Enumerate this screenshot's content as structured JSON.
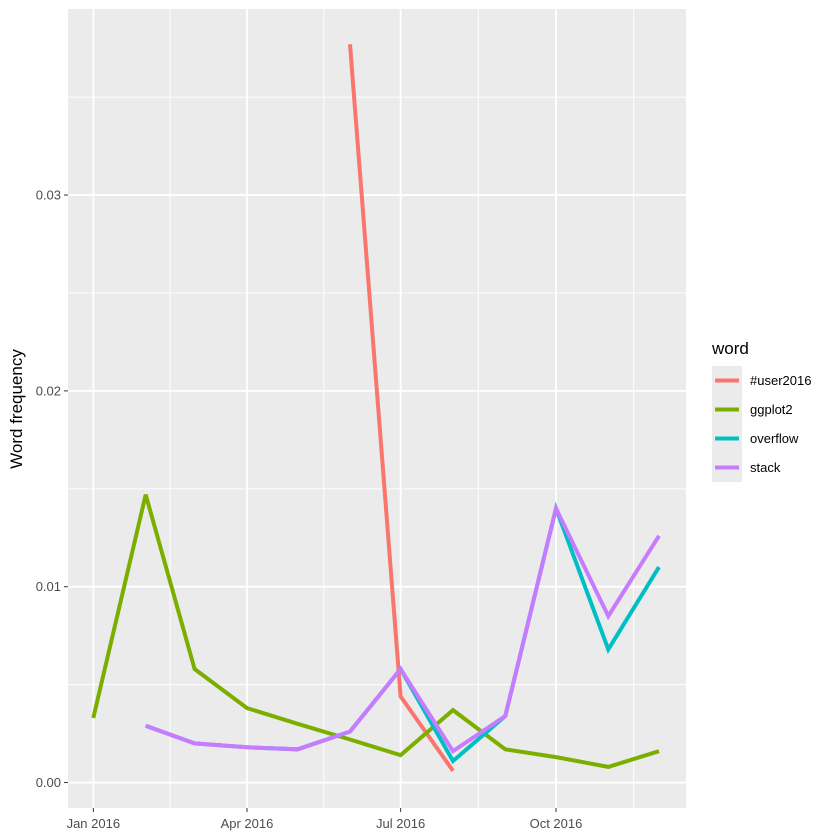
{
  "chart_data": {
    "type": "line",
    "xlabel": "",
    "ylabel": "Word frequency",
    "x_ticks": [
      "Jan 2016",
      "Apr 2016",
      "Jul 2016",
      "Oct 2016"
    ],
    "x_tick_dates": [
      "2016-01-01",
      "2016-04-01",
      "2016-07-01",
      "2016-10-01"
    ],
    "y_ticks": [
      "0.00",
      "0.01",
      "0.02",
      "0.03"
    ],
    "y_tick_values": [
      0.0,
      0.01,
      0.02,
      0.03
    ],
    "xlim": [
      "2015-12-17",
      "2016-12-17"
    ],
    "ylim": [
      -0.0013,
      0.0395
    ],
    "grid": true,
    "legend_position": "right",
    "legend_title": "word",
    "series": [
      {
        "name": "#user2016",
        "color": "#F8766D",
        "points": [
          [
            "2016-06-01",
            0.0377
          ],
          [
            "2016-07-01",
            0.0044
          ],
          [
            "2016-08-01",
            0.0006
          ]
        ]
      },
      {
        "name": "ggplot2",
        "color": "#7CAE00",
        "points": [
          [
            "2016-01-01",
            0.0033
          ],
          [
            "2016-02-01",
            0.0147
          ],
          [
            "2016-03-01",
            0.0058
          ],
          [
            "2016-04-01",
            0.0038
          ],
          [
            "2016-05-01",
            0.003
          ],
          [
            "2016-06-01",
            0.0022
          ],
          [
            "2016-07-01",
            0.0014
          ],
          [
            "2016-08-01",
            0.0037
          ],
          [
            "2016-09-01",
            0.0017
          ],
          [
            "2016-10-01",
            0.0013
          ],
          [
            "2016-11-01",
            0.0008
          ],
          [
            "2016-12-01",
            0.0016
          ]
        ]
      },
      {
        "name": "overflow",
        "color": "#00BFC4",
        "points": [
          [
            "2016-02-01",
            0.0029
          ],
          [
            "2016-03-01",
            0.002
          ],
          [
            "2016-04-01",
            0.0018
          ],
          [
            "2016-05-01",
            0.0017
          ],
          [
            "2016-06-01",
            0.0026
          ],
          [
            "2016-07-01",
            0.0058
          ],
          [
            "2016-08-01",
            0.0011
          ],
          [
            "2016-09-01",
            0.0034
          ],
          [
            "2016-10-01",
            0.014
          ],
          [
            "2016-11-01",
            0.0068
          ],
          [
            "2016-12-01",
            0.011
          ]
        ]
      },
      {
        "name": "stack",
        "color": "#C77CFF",
        "points": [
          [
            "2016-02-01",
            0.0029
          ],
          [
            "2016-03-01",
            0.002
          ],
          [
            "2016-04-01",
            0.0018
          ],
          [
            "2016-05-01",
            0.0017
          ],
          [
            "2016-06-01",
            0.0026
          ],
          [
            "2016-07-01",
            0.0058
          ],
          [
            "2016-08-01",
            0.0016
          ],
          [
            "2016-09-01",
            0.0034
          ],
          [
            "2016-10-01",
            0.014
          ],
          [
            "2016-11-01",
            0.0085
          ],
          [
            "2016-12-01",
            0.0126
          ]
        ]
      }
    ]
  }
}
